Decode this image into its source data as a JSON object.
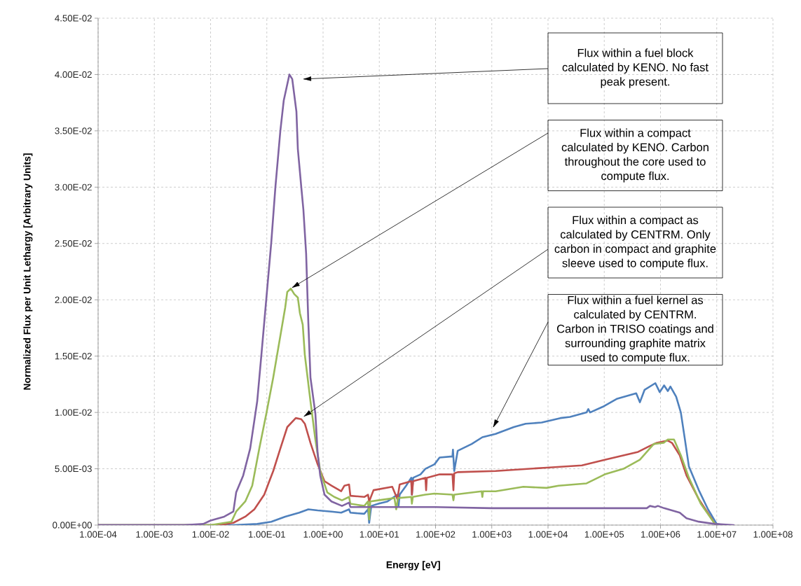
{
  "chart_data": {
    "type": "line",
    "xlabel": "Energy [eV]",
    "ylabel": "Normalized Flux per Unit Lethargy [Arbitrary Units]",
    "log": "x",
    "grid": true,
    "marker": "none",
    "line_style": "solid",
    "xlim": [
      0.0001,
      100000000
    ],
    "ylim": [
      0,
      0.045
    ],
    "xticks": [
      {
        "value": 0.0001,
        "label": "1.00E-04"
      },
      {
        "value": 0.001,
        "label": "1.00E-03"
      },
      {
        "value": 0.01,
        "label": "1.00E-02"
      },
      {
        "value": 0.1,
        "label": "1.00E-01"
      },
      {
        "value": 1,
        "label": "1.00E+00"
      },
      {
        "value": 10,
        "label": "1.00E+01"
      },
      {
        "value": 100,
        "label": "1.00E+02"
      },
      {
        "value": 1000,
        "label": "1.00E+03"
      },
      {
        "value": 10000,
        "label": "1.00E+04"
      },
      {
        "value": 100000,
        "label": "1.00E+05"
      },
      {
        "value": 1000000,
        "label": "1.00E+06"
      },
      {
        "value": 10000000,
        "label": "1.00E+07"
      },
      {
        "value": 100000000,
        "label": "1.00E+08"
      }
    ],
    "yticks": [
      {
        "value": 0,
        "label": "0.00E+00"
      },
      {
        "value": 0.005,
        "label": "5.00E-03"
      },
      {
        "value": 0.01,
        "label": "1.00E-02"
      },
      {
        "value": 0.015,
        "label": "1.50E-02"
      },
      {
        "value": 0.02,
        "label": "2.00E-02"
      },
      {
        "value": 0.025,
        "label": "2.50E-02"
      },
      {
        "value": 0.03,
        "label": "3.00E-02"
      },
      {
        "value": 0.035,
        "label": "3.50E-02"
      },
      {
        "value": 0.04,
        "label": "4.00E-02"
      },
      {
        "value": 0.045,
        "label": "4.50E-02"
      }
    ],
    "annotations": [
      "Flux within a fuel block calculated by KENO. No fast peak present.",
      "Flux within a compact calculated by KENO. Carbon throughout the core used to compute flux.",
      "Flux within a compact as calculated by CENTRM. Only carbon in compact and graphite sleeve used to compute flux.",
      "Flux within a fuel kernel as calculated by CENTRM. Carbon in TRISO coatings and surrounding graphite matrix used to compute flux."
    ],
    "series": [
      {
        "color": "#4f81bd",
        "x": [
          0.0001,
          0.0254,
          0.0675,
          0.12,
          0.212,
          0.377,
          0.547,
          0.8,
          1.41,
          2.1,
          2.9,
          3.06,
          5.4,
          6.3,
          6.6,
          7.2,
          9.6,
          14,
          21,
          22,
          23,
          30,
          37,
          38,
          40,
          54,
          66,
          96,
          118,
          200,
          204,
          215,
          248,
          440,
          680,
          1170,
          2460,
          4000,
          7700,
          16600,
          24600,
          48400,
          52000,
          56000,
          94000,
          166000,
          370000,
          430000,
          520000,
          810000,
          970000,
          1160000,
          1350000,
          1500000,
          1900000,
          2300000,
          2700000,
          3200000,
          4800000,
          7000000,
          10000000,
          13000000
        ],
        "values": [
          0,
          0,
          0.0001,
          0.0003,
          0.00075,
          0.0011,
          0.0014,
          0.0013,
          0.0012,
          0.0011,
          0.0014,
          0.0011,
          0.001,
          0.0014,
          0.0002,
          0.0017,
          0.0019,
          0.0021,
          0.0027,
          0.0017,
          0.0027,
          0.0035,
          0.0042,
          0.0027,
          0.0042,
          0.0045,
          0.005,
          0.0054,
          0.006,
          0.0061,
          0.0067,
          0.0048,
          0.0066,
          0.0072,
          0.0078,
          0.0081,
          0.0087,
          0.009,
          0.0091,
          0.0095,
          0.0096,
          0.01,
          0.0103,
          0.01,
          0.0105,
          0.0112,
          0.0117,
          0.0109,
          0.012,
          0.0126,
          0.0118,
          0.0124,
          0.0119,
          0.0123,
          0.0114,
          0.01,
          0.0077,
          0.0052,
          0.0031,
          0.0014,
          0.0001,
          0
        ]
      },
      {
        "color": "#c0504d",
        "x": [
          0.0001,
          0.0144,
          0.0254,
          0.0414,
          0.06,
          0.09,
          0.107,
          0.13,
          0.174,
          0.231,
          0.327,
          0.41,
          0.474,
          0.597,
          0.8,
          1.06,
          1.41,
          2.1,
          2.4,
          2.9,
          3.06,
          5.4,
          6.3,
          6.6,
          7.9,
          17,
          21,
          23,
          37,
          38,
          40,
          66,
          68,
          70,
          118,
          200,
          208,
          215,
          248,
          1170,
          9440,
          40000,
          102000,
          400000,
          630000,
          860000,
          1350000,
          1600000,
          2200000,
          2900000,
          4800000,
          9300000,
          11000000
        ],
        "values": [
          0,
          0,
          0.0002,
          0.00075,
          0.0014,
          0.0027,
          0.0037,
          0.0048,
          0.0068,
          0.0087,
          0.0095,
          0.0094,
          0.009,
          0.0073,
          0.0054,
          0.0039,
          0.0035,
          0.003,
          0.0035,
          0.0036,
          0.0026,
          0.0025,
          0.0027,
          0.0021,
          0.0031,
          0.0034,
          0.0023,
          0.0036,
          0.0039,
          0.0027,
          0.0039,
          0.0042,
          0.0031,
          0.0042,
          0.0045,
          0.0045,
          0.0031,
          0.0046,
          0.0047,
          0.0048,
          0.0051,
          0.0053,
          0.0058,
          0.0065,
          0.007,
          0.0073,
          0.0075,
          0.0073,
          0.0062,
          0.0044,
          0.0023,
          0.0001,
          0
        ]
      },
      {
        "color": "#9bbb59",
        "x": [
          0.0001,
          0.01,
          0.0235,
          0.0285,
          0.0414,
          0.055,
          0.0735,
          0.098,
          0.13,
          0.174,
          0.212,
          0.231,
          0.267,
          0.308,
          0.356,
          0.388,
          0.435,
          0.474,
          0.597,
          0.73,
          0.89,
          0.97,
          1.19,
          1.58,
          2.17,
          2.9,
          3.06,
          5.4,
          6.3,
          6.6,
          6.9,
          9.6,
          18.6,
          20,
          21.5,
          37,
          38,
          39.5,
          66,
          96,
          200,
          208,
          215,
          660,
          680,
          700,
          1170,
          3640,
          9440,
          15400,
          48400,
          102000,
          220000,
          430000,
          760000,
          1140000,
          1350000,
          1740000,
          2300000,
          3200000,
          5200000,
          9300000,
          11000000
        ],
        "values": [
          0,
          0,
          0.0003,
          0.0012,
          0.0021,
          0.0035,
          0.0068,
          0.0099,
          0.0131,
          0.0168,
          0.0193,
          0.0207,
          0.021,
          0.0205,
          0.0202,
          0.0188,
          0.0178,
          0.0151,
          0.011,
          0.0076,
          0.0048,
          0.0042,
          0.0029,
          0.0025,
          0.0022,
          0.0025,
          0.0019,
          0.0017,
          0.0021,
          0.0005,
          0.0021,
          0.0022,
          0.0024,
          0.0014,
          0.0024,
          0.0025,
          0.0019,
          0.0025,
          0.0027,
          0.0028,
          0.0027,
          0.0022,
          0.0027,
          0.003,
          0.0025,
          0.003,
          0.003,
          0.0034,
          0.0033,
          0.0035,
          0.0037,
          0.0045,
          0.005,
          0.0058,
          0.0072,
          0.0073,
          0.0076,
          0.0076,
          0.0062,
          0.0042,
          0.0019,
          0.0001,
          0
        ]
      },
      {
        "color": "#8064a2",
        "x": [
          0.0001,
          0.0034,
          0.0074,
          0.01,
          0.0175,
          0.0254,
          0.0285,
          0.038,
          0.0506,
          0.0675,
          0.08,
          0.09,
          0.12,
          0.142,
          0.174,
          0.2,
          0.252,
          0.283,
          0.336,
          0.356,
          0.41,
          0.447,
          0.5,
          0.547,
          0.597,
          0.73,
          0.8,
          0.89,
          1.06,
          1.41,
          2.17,
          2.9,
          3.06,
          10,
          100,
          1000,
          16600,
          570000,
          650000,
          800000,
          900000,
          1160000,
          2200000,
          2900000,
          4800000,
          9300000,
          20000000
        ],
        "values": [
          0,
          0,
          0.0001,
          0.0004,
          0.00075,
          0.0012,
          0.0029,
          0.0044,
          0.0068,
          0.011,
          0.0151,
          0.018,
          0.0251,
          0.03,
          0.035,
          0.0377,
          0.04,
          0.0396,
          0.0367,
          0.0334,
          0.03,
          0.028,
          0.0241,
          0.018,
          0.0131,
          0.0099,
          0.0064,
          0.0044,
          0.0027,
          0.0021,
          0.0017,
          0.002,
          0.0016,
          0.0016,
          0.0016,
          0.0015,
          0.0015,
          0.0015,
          0.0017,
          0.0016,
          0.0017,
          0.0015,
          0.0011,
          0.0006,
          0.0003,
          0.0001,
          0
        ]
      }
    ]
  }
}
